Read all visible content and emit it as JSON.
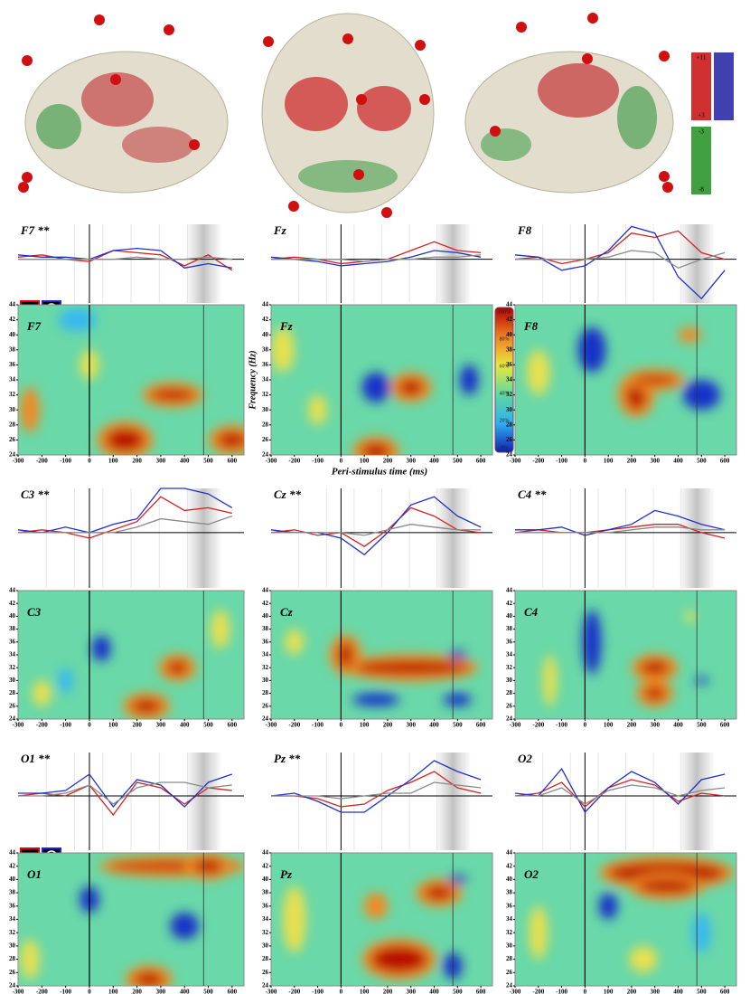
{
  "figure": {
    "x_label": "Peri-stimulus time (ms)",
    "y_label": "Frequency (Hz)",
    "colorbar_labels": [
      "100%",
      "80%",
      "60%",
      "40%",
      "20%",
      "0%"
    ],
    "brain_legend": [
      "+11",
      "+3",
      "-3",
      "-8"
    ]
  },
  "heatmap_axes": {
    "xlim": [
      -300,
      650
    ],
    "xticks": [
      -300,
      -200,
      -100,
      0,
      100,
      200,
      300,
      400,
      500,
      600
    ],
    "ylim": [
      24,
      44
    ],
    "yticks": [
      24,
      26,
      28,
      30,
      32,
      34,
      36,
      38,
      40,
      42,
      44
    ]
  },
  "heatmaps": [
    {
      "title": "F7"
    },
    {
      "title": "Fz"
    },
    {
      "title": "F8"
    },
    {
      "title": "C3"
    },
    {
      "title": "Cz"
    },
    {
      "title": "C4"
    },
    {
      "title": "O1"
    },
    {
      "title": "Pz"
    },
    {
      "title": "O2"
    }
  ],
  "chart_data": [
    {
      "type": "line",
      "title": "F7 **",
      "x": [
        -300,
        -200,
        -100,
        0,
        100,
        200,
        300,
        400,
        500,
        600
      ],
      "xlim": [
        -300,
        650
      ],
      "ylim": [
        -2,
        1.6
      ],
      "series": [
        {
          "color": "#d82020",
          "values": [
            0.1,
            0.2,
            0,
            -0.1,
            0.4,
            0.3,
            0.2,
            -0.3,
            0.2,
            -0.5
          ]
        },
        {
          "color": "#2030c8",
          "values": [
            0.2,
            0.1,
            0.1,
            0,
            0.4,
            0.5,
            0.4,
            -0.4,
            -0.2,
            -0.4
          ]
        },
        {
          "color": "#8a8a8a",
          "values": [
            0,
            0,
            0,
            0,
            0,
            0.1,
            0,
            0,
            0.1,
            0
          ]
        }
      ]
    },
    {
      "type": "line",
      "title": "Fz",
      "x": [
        -300,
        -200,
        -100,
        0,
        100,
        200,
        300,
        400,
        500,
        600
      ],
      "xlim": [
        -300,
        650
      ],
      "ylim": [
        -2,
        1.6
      ],
      "series": [
        {
          "color": "#d82020",
          "values": [
            0,
            0.1,
            0,
            -0.2,
            -0.1,
            0,
            0.4,
            0.8,
            0.4,
            0.3
          ]
        },
        {
          "color": "#2030c8",
          "values": [
            0.1,
            0,
            -0.1,
            -0.3,
            -0.2,
            -0.1,
            0.1,
            0.4,
            0.3,
            0.1
          ]
        },
        {
          "color": "#8a8a8a",
          "values": [
            0,
            0,
            0,
            0,
            -0.1,
            0,
            0,
            0.1,
            0.1,
            0.2
          ]
        }
      ]
    },
    {
      "type": "line",
      "title": "F8",
      "x": [
        -300,
        -200,
        -100,
        0,
        100,
        200,
        300,
        400,
        500,
        600
      ],
      "xlim": [
        -300,
        650
      ],
      "ylim": [
        -2,
        1.6
      ],
      "series": [
        {
          "color": "#d82020",
          "values": [
            0,
            0.1,
            -0.2,
            0,
            0.3,
            1.2,
            1.0,
            1.3,
            0.3,
            0
          ]
        },
        {
          "color": "#2030c8",
          "values": [
            0.2,
            0.1,
            -0.5,
            -0.3,
            0.4,
            1.5,
            1.2,
            -0.8,
            -1.8,
            -0.5
          ]
        },
        {
          "color": "#8a8a8a",
          "values": [
            0,
            0,
            0,
            0,
            0.1,
            0.4,
            0.3,
            -0.4,
            0,
            0.3
          ]
        }
      ]
    },
    {
      "type": "line",
      "title": "C3 **",
      "x": [
        -300,
        -200,
        -100,
        0,
        100,
        200,
        300,
        400,
        500,
        600
      ],
      "xlim": [
        -300,
        650
      ],
      "ylim": [
        -2,
        1.6
      ],
      "series": [
        {
          "color": "#d82020",
          "values": [
            0,
            0.1,
            0,
            -0.2,
            0.1,
            0.4,
            1.3,
            0.8,
            0.9,
            0.7
          ]
        },
        {
          "color": "#2030c8",
          "values": [
            0.1,
            0,
            0.2,
            0,
            0.3,
            0.5,
            1.6,
            1.6,
            1.4,
            0.9
          ]
        },
        {
          "color": "#8a8a8a",
          "values": [
            0,
            0,
            0,
            0,
            0,
            0.2,
            0.5,
            0.4,
            0.3,
            0.6
          ]
        }
      ]
    },
    {
      "type": "line",
      "title": "Cz **",
      "x": [
        -300,
        -200,
        -100,
        0,
        100,
        200,
        300,
        400,
        500,
        600
      ],
      "xlim": [
        -300,
        650
      ],
      "ylim": [
        -2,
        1.6
      ],
      "series": [
        {
          "color": "#d82020",
          "values": [
            0,
            0.1,
            -0.1,
            0,
            -0.5,
            0.1,
            0.9,
            0.6,
            0.1,
            0
          ]
        },
        {
          "color": "#2030c8",
          "values": [
            0.1,
            0,
            0,
            -0.2,
            -0.8,
            0,
            1.0,
            1.3,
            0.6,
            0.2
          ]
        },
        {
          "color": "#8a8a8a",
          "values": [
            0,
            0,
            0,
            0,
            -0.1,
            0.1,
            0.3,
            0.2,
            0.1,
            0.1
          ]
        }
      ]
    },
    {
      "type": "line",
      "title": "C4 **",
      "x": [
        -300,
        -200,
        -100,
        0,
        100,
        200,
        300,
        400,
        500,
        600
      ],
      "xlim": [
        -300,
        650
      ],
      "ylim": [
        -2,
        1.6
      ],
      "series": [
        {
          "color": "#d82020",
          "values": [
            0,
            0.1,
            0,
            0,
            0.1,
            0.2,
            0.3,
            0.3,
            0,
            -0.2
          ]
        },
        {
          "color": "#2030c8",
          "values": [
            0.1,
            0.1,
            0.2,
            -0.1,
            0.1,
            0.3,
            0.8,
            0.6,
            0.3,
            0.1
          ]
        },
        {
          "color": "#8a8a8a",
          "values": [
            0,
            0,
            0,
            0,
            0,
            0.1,
            0.2,
            0.2,
            0.1,
            0.1
          ]
        }
      ]
    },
    {
      "type": "line",
      "title": "O1 **",
      "x": [
        -300,
        -200,
        -100,
        0,
        100,
        200,
        300,
        400,
        500,
        600
      ],
      "xlim": [
        -300,
        650
      ],
      "ylim": [
        -2,
        1.6
      ],
      "series": [
        {
          "color": "#d82020",
          "values": [
            0,
            0.1,
            0,
            0.4,
            -0.7,
            0.5,
            0.3,
            -0.3,
            0.3,
            0.2
          ]
        },
        {
          "color": "#2030c8",
          "values": [
            0.1,
            0.1,
            0.2,
            0.8,
            -0.4,
            0.6,
            0.4,
            -0.4,
            0.5,
            0.8
          ]
        },
        {
          "color": "#8a8a8a",
          "values": [
            0,
            0,
            0.1,
            0.4,
            -0.3,
            0.3,
            0.5,
            0.5,
            0.3,
            0.4
          ]
        }
      ]
    },
    {
      "type": "line",
      "title": "Pz **",
      "x": [
        -300,
        -200,
        -100,
        0,
        100,
        200,
        300,
        400,
        500,
        600
      ],
      "xlim": [
        -300,
        650
      ],
      "ylim": [
        -2,
        1.6
      ],
      "series": [
        {
          "color": "#d82020",
          "values": [
            0,
            0,
            -0.1,
            -0.4,
            -0.3,
            0.2,
            0.5,
            0.9,
            0.3,
            0.1
          ]
        },
        {
          "color": "#2030c8",
          "values": [
            0,
            0.1,
            -0.2,
            -0.6,
            -0.6,
            0,
            0.6,
            1.3,
            0.9,
            0.6
          ]
        },
        {
          "color": "#8a8a8a",
          "values": [
            0,
            0,
            0,
            -0.1,
            0,
            0.1,
            0.1,
            0.5,
            0.4,
            0.3
          ]
        }
      ]
    },
    {
      "type": "line",
      "title": "O2",
      "x": [
        -300,
        -200,
        -100,
        0,
        100,
        200,
        300,
        400,
        500,
        600
      ],
      "xlim": [
        -300,
        650
      ],
      "ylim": [
        -2,
        1.6
      ],
      "series": [
        {
          "color": "#d82020",
          "values": [
            0,
            0.1,
            0.5,
            -0.4,
            0.3,
            0.6,
            0.4,
            -0.2,
            0.1,
            0
          ]
        },
        {
          "color": "#2030c8",
          "values": [
            0.1,
            0,
            1.0,
            -0.6,
            0.3,
            0.9,
            0.5,
            -0.3,
            0.6,
            0.8
          ]
        },
        {
          "color": "#8a8a8a",
          "values": [
            0,
            0,
            0.3,
            -0.3,
            0.2,
            0.4,
            0.3,
            0,
            0.2,
            0.3
          ]
        }
      ]
    }
  ]
}
